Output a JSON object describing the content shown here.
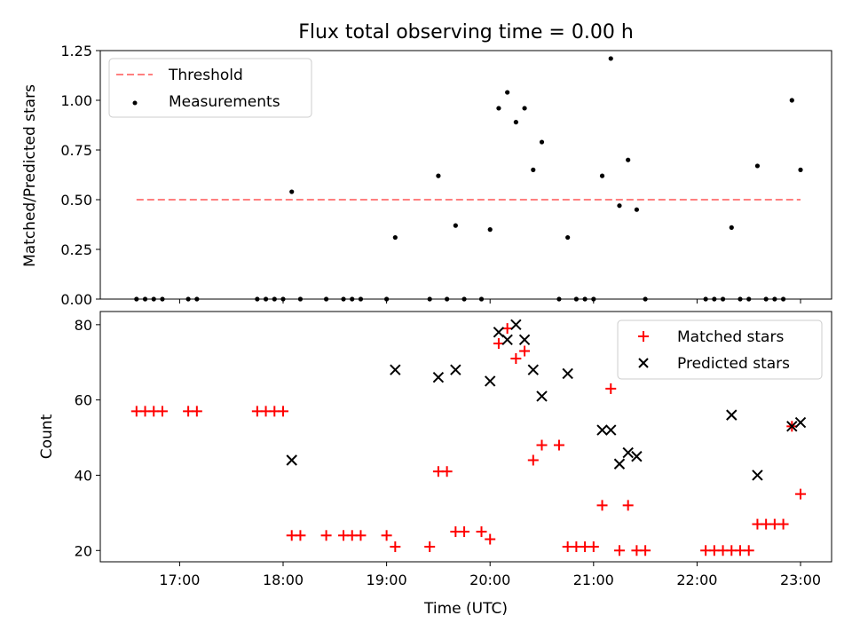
{
  "chart_data": [
    {
      "type": "scatter",
      "title": "Flux total observing time = 0.00 h",
      "xlabel": "",
      "ylabel": "Matched/Predicted stars",
      "ylim": [
        0,
        1.25
      ],
      "yticks": [
        "0.00",
        "0.25",
        "0.50",
        "0.75",
        "1.00",
        "1.25"
      ],
      "threshold": {
        "name": "Threshold",
        "value": 0.5,
        "x": [
          "16:35",
          "23:00"
        ],
        "color": "#ff7f7f"
      },
      "series": [
        {
          "name": "Measurements",
          "color": "#000000",
          "points": [
            [
              "16:35",
              0
            ],
            [
              "16:40",
              0
            ],
            [
              "16:45",
              0
            ],
            [
              "16:50",
              0
            ],
            [
              "17:05",
              0
            ],
            [
              "17:10",
              0
            ],
            [
              "17:45",
              0
            ],
            [
              "17:50",
              0
            ],
            [
              "17:55",
              0
            ],
            [
              "18:00",
              0
            ],
            [
              "18:05",
              0.54
            ],
            [
              "18:10",
              0
            ],
            [
              "18:25",
              0
            ],
            [
              "18:35",
              0
            ],
            [
              "18:40",
              0
            ],
            [
              "18:45",
              0
            ],
            [
              "19:00",
              0
            ],
            [
              "19:05",
              0.31
            ],
            [
              "19:25",
              0
            ],
            [
              "19:30",
              0.62
            ],
            [
              "19:35",
              0
            ],
            [
              "19:40",
              0.37
            ],
            [
              "19:45",
              0
            ],
            [
              "19:55",
              0
            ],
            [
              "20:00",
              0.35
            ],
            [
              "20:05",
              0.96
            ],
            [
              "20:10",
              1.04
            ],
            [
              "20:15",
              0.89
            ],
            [
              "20:20",
              0.96
            ],
            [
              "20:25",
              0.65
            ],
            [
              "20:30",
              0.79
            ],
            [
              "20:40",
              0
            ],
            [
              "20:45",
              0.31
            ],
            [
              "20:50",
              0
            ],
            [
              "20:55",
              0
            ],
            [
              "21:00",
              0
            ],
            [
              "21:05",
              0.62
            ],
            [
              "21:10",
              1.21
            ],
            [
              "21:15",
              0.47
            ],
            [
              "21:20",
              0.7
            ],
            [
              "21:25",
              0.45
            ],
            [
              "21:30",
              0
            ],
            [
              "22:05",
              0
            ],
            [
              "22:10",
              0
            ],
            [
              "22:15",
              0
            ],
            [
              "22:20",
              0.36
            ],
            [
              "22:25",
              0
            ],
            [
              "22:30",
              0
            ],
            [
              "22:35",
              0.67
            ],
            [
              "22:40",
              0
            ],
            [
              "22:45",
              0
            ],
            [
              "22:50",
              0
            ],
            [
              "22:55",
              1.0
            ],
            [
              "23:00",
              0.65
            ]
          ]
        }
      ],
      "legend": "top-left"
    },
    {
      "type": "scatter",
      "title": "",
      "xlabel": "Time (UTC)",
      "ylabel": "Count",
      "ylim": [
        17,
        83.5
      ],
      "yticks": [
        "20",
        "40",
        "60",
        "80"
      ],
      "xticks": [
        "17:00",
        "18:00",
        "19:00",
        "20:00",
        "21:00",
        "22:00",
        "23:00"
      ],
      "xlim": [
        "16:14",
        "23:18"
      ],
      "series": [
        {
          "name": "Matched stars",
          "marker": "plus",
          "color": "#ff0000",
          "points": [
            [
              "16:35",
              57
            ],
            [
              "16:40",
              57
            ],
            [
              "16:45",
              57
            ],
            [
              "16:50",
              57
            ],
            [
              "17:05",
              57
            ],
            [
              "17:10",
              57
            ],
            [
              "17:45",
              57
            ],
            [
              "17:50",
              57
            ],
            [
              "17:55",
              57
            ],
            [
              "18:00",
              57
            ],
            [
              "18:05",
              24
            ],
            [
              "18:10",
              24
            ],
            [
              "18:25",
              24
            ],
            [
              "18:35",
              24
            ],
            [
              "18:40",
              24
            ],
            [
              "18:45",
              24
            ],
            [
              "19:00",
              24
            ],
            [
              "19:05",
              21
            ],
            [
              "19:25",
              21
            ],
            [
              "19:30",
              41
            ],
            [
              "19:35",
              41
            ],
            [
              "19:40",
              25
            ],
            [
              "19:45",
              25
            ],
            [
              "19:55",
              25
            ],
            [
              "20:00",
              23
            ],
            [
              "20:05",
              75
            ],
            [
              "20:10",
              79
            ],
            [
              "20:15",
              71
            ],
            [
              "20:20",
              73
            ],
            [
              "20:25",
              44
            ],
            [
              "20:30",
              48
            ],
            [
              "20:40",
              48
            ],
            [
              "20:45",
              21
            ],
            [
              "20:50",
              21
            ],
            [
              "20:55",
              21
            ],
            [
              "21:00",
              21
            ],
            [
              "21:05",
              32
            ],
            [
              "21:10",
              63
            ],
            [
              "21:15",
              20
            ],
            [
              "21:20",
              32
            ],
            [
              "21:25",
              20
            ],
            [
              "21:30",
              20
            ],
            [
              "22:05",
              20
            ],
            [
              "22:10",
              20
            ],
            [
              "22:15",
              20
            ],
            [
              "22:20",
              20
            ],
            [
              "22:25",
              20
            ],
            [
              "22:30",
              20
            ],
            [
              "22:35",
              27
            ],
            [
              "22:40",
              27
            ],
            [
              "22:45",
              27
            ],
            [
              "22:50",
              27
            ],
            [
              "22:55",
              53
            ],
            [
              "23:00",
              35
            ]
          ]
        },
        {
          "name": "Predicted stars",
          "marker": "x",
          "color": "#000000",
          "points": [
            [
              "18:05",
              44
            ],
            [
              "19:05",
              68
            ],
            [
              "19:30",
              66
            ],
            [
              "19:40",
              68
            ],
            [
              "20:00",
              65
            ],
            [
              "20:05",
              78
            ],
            [
              "20:10",
              76
            ],
            [
              "20:15",
              80
            ],
            [
              "20:20",
              76
            ],
            [
              "20:25",
              68
            ],
            [
              "20:30",
              61
            ],
            [
              "20:45",
              67
            ],
            [
              "21:05",
              52
            ],
            [
              "21:10",
              52
            ],
            [
              "21:15",
              43
            ],
            [
              "21:20",
              46
            ],
            [
              "21:25",
              45
            ],
            [
              "22:20",
              56
            ],
            [
              "22:35",
              40
            ],
            [
              "22:55",
              53
            ],
            [
              "23:00",
              54
            ]
          ]
        }
      ],
      "legend": "top-right"
    }
  ]
}
